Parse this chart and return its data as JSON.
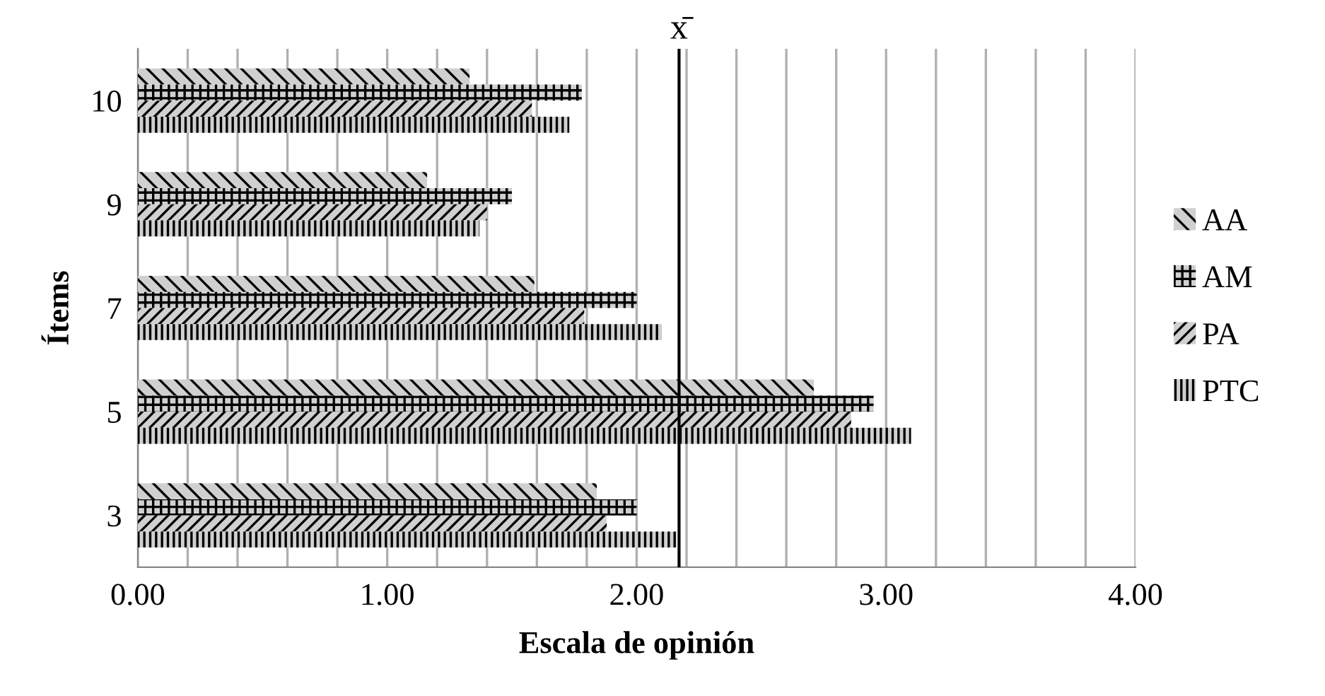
{
  "chart_data": {
    "type": "bar",
    "orientation": "horizontal",
    "xlabel": "Escala de opinión",
    "ylabel": "Ítems",
    "categories": [
      "10",
      "9",
      "7",
      "5",
      "3"
    ],
    "series": [
      {
        "name": "AA",
        "color": "#000000",
        "values": [
          1.33,
          1.16,
          1.59,
          2.71,
          1.84
        ]
      },
      {
        "name": "AM",
        "color": "#000000",
        "values": [
          1.78,
          1.5,
          2.0,
          2.95,
          2.0
        ]
      },
      {
        "name": "PA",
        "color": "#000000",
        "values": [
          1.58,
          1.4,
          1.79,
          2.86,
          1.88
        ]
      },
      {
        "name": "PTC",
        "color": "#000000",
        "values": [
          1.73,
          1.37,
          2.1,
          3.1,
          2.16
        ]
      }
    ],
    "xlim": [
      0,
      4
    ],
    "xticks": [
      {
        "value": 0,
        "label": "0.00"
      },
      {
        "value": 0.2,
        "label": null
      },
      {
        "value": 0.4,
        "label": null
      },
      {
        "value": 0.6,
        "label": null
      },
      {
        "value": 0.8,
        "label": null
      },
      {
        "value": 1,
        "label": "1.00"
      },
      {
        "value": 1.2,
        "label": null
      },
      {
        "value": 1.4,
        "label": null
      },
      {
        "value": 1.6,
        "label": null
      },
      {
        "value": 1.8,
        "label": null
      },
      {
        "value": 2,
        "label": "2.00"
      },
      {
        "value": 2.2,
        "label": null
      },
      {
        "value": 2.4,
        "label": null
      },
      {
        "value": 2.6,
        "label": null
      },
      {
        "value": 2.8,
        "label": null
      },
      {
        "value": 3,
        "label": "3.00"
      },
      {
        "value": 3.2,
        "label": null
      },
      {
        "value": 3.4,
        "label": null
      },
      {
        "value": 3.6,
        "label": null
      },
      {
        "value": 3.8,
        "label": null
      },
      {
        "value": 4,
        "label": "4.00"
      }
    ],
    "ref_lines": [
      {
        "axis": "x",
        "value": 2.17,
        "label": "x̄",
        "color": "#000000"
      }
    ],
    "grid": "x",
    "legend": "right"
  }
}
